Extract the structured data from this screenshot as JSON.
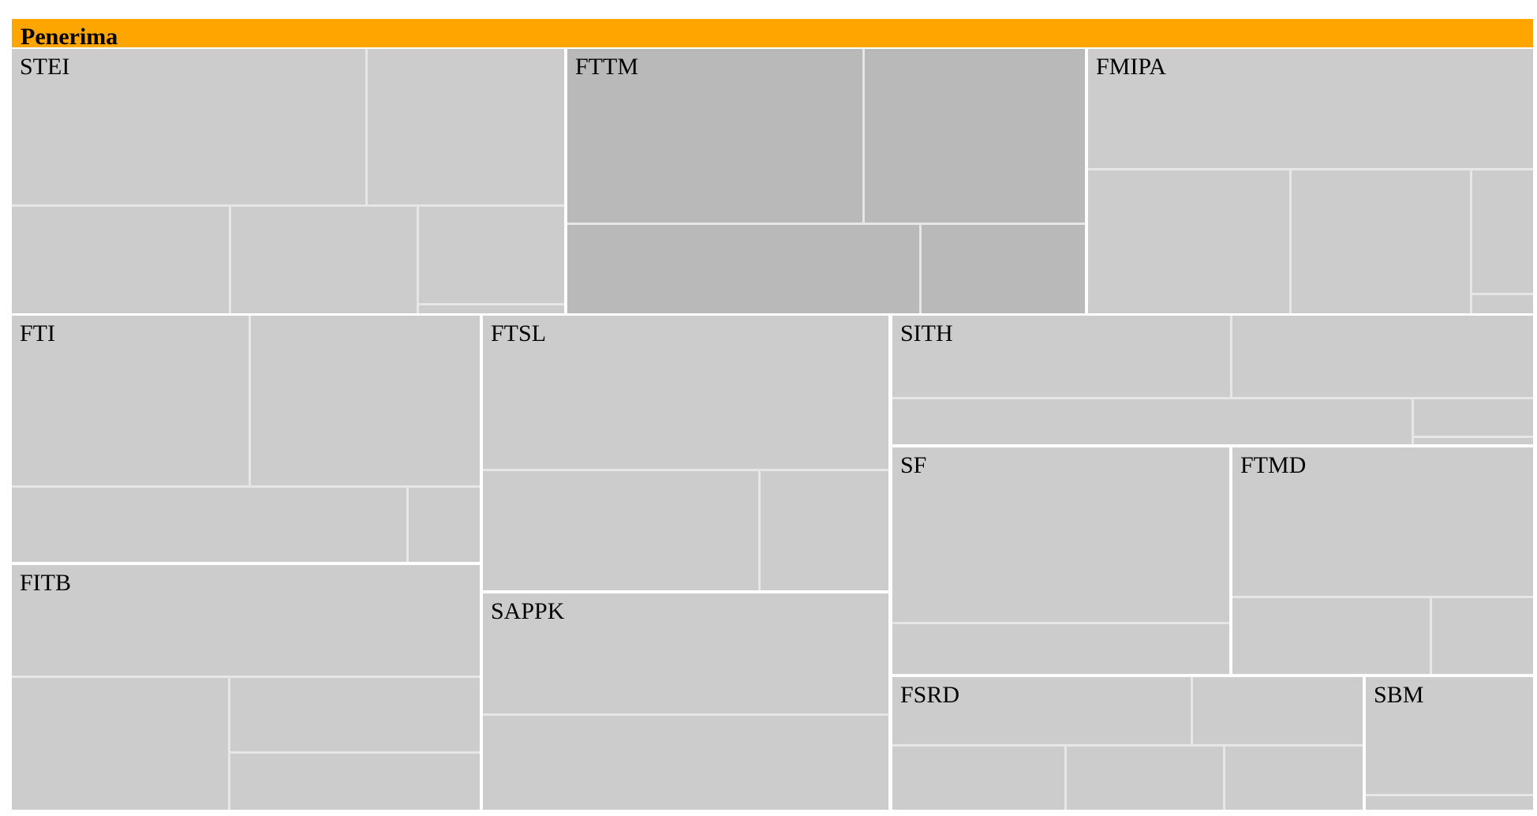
{
  "chart_data": {
    "type": "treemap",
    "title": "Penerima",
    "colors": {
      "header": "#ffa500",
      "cell": "#cccccc",
      "cell_highlight": "#b9b9b9",
      "cell_border": "#e6e6e6",
      "group_border": "#ffffff"
    },
    "groups": [
      {
        "name": "STEI",
        "highlight": false
      },
      {
        "name": "FTTM",
        "highlight": true
      },
      {
        "name": "FMIPA",
        "highlight": false
      },
      {
        "name": "FTI",
        "highlight": false
      },
      {
        "name": "FITB",
        "highlight": false
      },
      {
        "name": "FTSL",
        "highlight": false
      },
      {
        "name": "SAPPK",
        "highlight": false
      },
      {
        "name": "SITH",
        "highlight": false
      },
      {
        "name": "SF",
        "highlight": false
      },
      {
        "name": "FTMD",
        "highlight": false
      },
      {
        "name": "FSRD",
        "highlight": false
      },
      {
        "name": "SBM",
        "highlight": false
      }
    ]
  }
}
